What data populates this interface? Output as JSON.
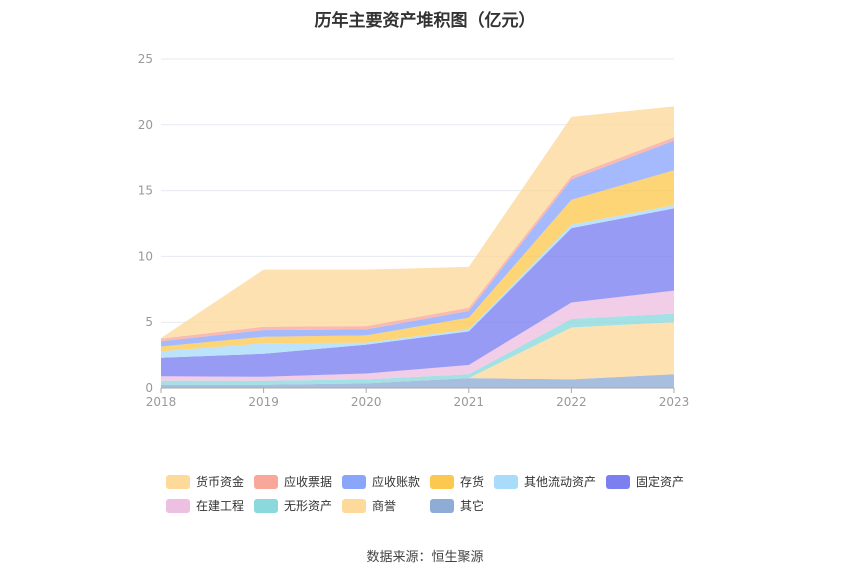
{
  "chart_data": {
    "type": "area",
    "stacked": true,
    "title": "历年主要资产堆积图（亿元）",
    "x": [
      "2018",
      "2019",
      "2020",
      "2021",
      "2022",
      "2023"
    ],
    "ylim": [
      0,
      25
    ],
    "yticks": [
      0,
      5,
      10,
      15,
      20,
      25
    ],
    "grid": true,
    "legend_position": "bottom",
    "series": [
      {
        "name": "其它",
        "color": "#8eacd6",
        "values": [
          0.25,
          0.25,
          0.35,
          0.75,
          0.65,
          1.05
        ]
      },
      {
        "name": "商誉",
        "color": "#fdd99a",
        "values": [
          0,
          0,
          0,
          0,
          3.95,
          3.95
        ]
      },
      {
        "name": "无形资产",
        "color": "#8bd9dc",
        "values": [
          0.3,
          0.3,
          0.3,
          0.3,
          0.65,
          0.65
        ]
      },
      {
        "name": "在建工程",
        "color": "#edbfe0",
        "values": [
          0.35,
          0.3,
          0.45,
          0.7,
          1.25,
          1.75
        ]
      },
      {
        "name": "固定资产",
        "color": "#7b7ff0",
        "values": [
          1.4,
          1.75,
          2.2,
          2.55,
          5.65,
          6.25
        ]
      },
      {
        "name": "其他流动资产",
        "color": "#a9dbfb",
        "values": [
          0.5,
          0.8,
          0.15,
          0.15,
          0.25,
          0.25
        ]
      },
      {
        "name": "存货",
        "color": "#fcc84f",
        "values": [
          0.35,
          0.5,
          0.55,
          0.9,
          1.9,
          2.65
        ]
      },
      {
        "name": "应收账款",
        "color": "#8aa6fb",
        "values": [
          0.4,
          0.5,
          0.45,
          0.5,
          1.55,
          2.25
        ]
      },
      {
        "name": "应收票据",
        "color": "#f9a79a",
        "values": [
          0.2,
          0.25,
          0.25,
          0.25,
          0.25,
          0.25
        ]
      },
      {
        "name": "货币资金",
        "color": "#fdd99a",
        "values": [
          0.05,
          4.35,
          4.3,
          3.1,
          4.5,
          2.35
        ]
      }
    ]
  },
  "legend_order": [
    "货币资金",
    "应收票据",
    "应收账款",
    "存货",
    "其他流动资产",
    "固定资产",
    "在建工程",
    "无形资产",
    "商誉",
    "其它"
  ],
  "source": "数据来源：恒生聚源"
}
